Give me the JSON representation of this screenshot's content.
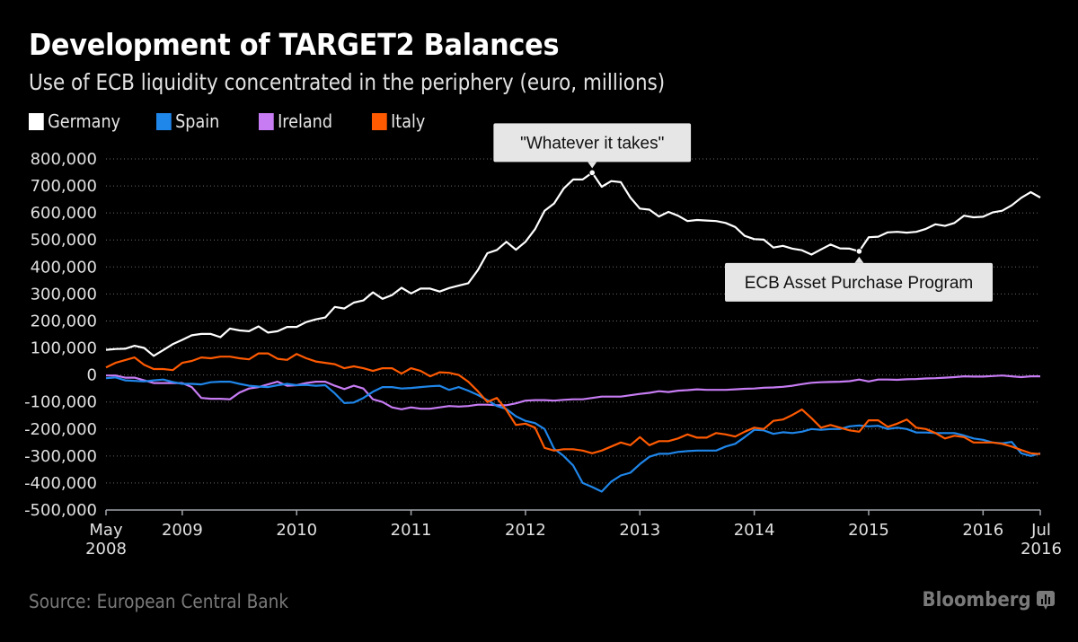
{
  "header": {
    "title": "Development of TARGET2 Balances",
    "subtitle": "Use of ECB liquidity concentrated in the periphery (euro, millions)"
  },
  "legend": [
    {
      "label": "Germany",
      "color": "#ffffff"
    },
    {
      "label": "Spain",
      "color": "#1f86ea"
    },
    {
      "label": "Ireland",
      "color": "#c77cf4"
    },
    {
      "label": "Italy",
      "color": "#ff5a00"
    }
  ],
  "footer": {
    "source": "Source: European Central Bank",
    "brand": "Bloomberg",
    "brand_icon": "bloomberg-chart-icon"
  },
  "chart_data": {
    "type": "line",
    "title": "Development of TARGET2 Balances",
    "subtitle": "Use of ECB liquidity concentrated in the periphery (euro, millions)",
    "xlabel": "",
    "ylabel": "",
    "ylim": [
      -500000,
      800000
    ],
    "yticks": [
      800000,
      700000,
      600000,
      500000,
      400000,
      300000,
      200000,
      100000,
      0,
      -100000,
      -200000,
      -300000,
      -400000,
      -500000
    ],
    "ytick_labels": [
      "800,000",
      "700,000",
      "600,000",
      "500,000",
      "400,000",
      "300,000",
      "200,000",
      "100,000",
      "0",
      "-100,000",
      "-200,000",
      "-300,000",
      "-400,000",
      "-500,000"
    ],
    "x_start": "2008-05",
    "x_end": "2016-07",
    "x_frequency": "monthly",
    "xticks": [
      {
        "month_index": 0,
        "label": "May",
        "label2": "2008"
      },
      {
        "month_index": 8,
        "label": "2009",
        "label2": ""
      },
      {
        "month_index": 20,
        "label": "2010",
        "label2": ""
      },
      {
        "month_index": 32,
        "label": "2011",
        "label2": ""
      },
      {
        "month_index": 44,
        "label": "2012",
        "label2": ""
      },
      {
        "month_index": 56,
        "label": "2013",
        "label2": ""
      },
      {
        "month_index": 68,
        "label": "2014",
        "label2": ""
      },
      {
        "month_index": 80,
        "label": "2015",
        "label2": ""
      },
      {
        "month_index": 92,
        "label": "2016",
        "label2": ""
      },
      {
        "month_index": 98,
        "label": "Jul",
        "label2": "2016"
      }
    ],
    "grid": true,
    "legend_position": "top-left",
    "series": [
      {
        "name": "Germany",
        "color": "#ffffff",
        "values": [
          93000,
          96000,
          97000,
          108000,
          100000,
          71000,
          92000,
          114000,
          130000,
          147000,
          152000,
          152000,
          140000,
          172000,
          165000,
          162000,
          180000,
          157000,
          162000,
          178000,
          178000,
          196000,
          206000,
          213000,
          252000,
          246000,
          268000,
          276000,
          306000,
          282000,
          296000,
          323000,
          302000,
          320000,
          320000,
          309000,
          322000,
          331000,
          340000,
          388000,
          451000,
          463000,
          493000,
          464000,
          493000,
          540000,
          608000,
          635000,
          690000,
          724000,
          724000,
          749000,
          697000,
          718000,
          714000,
          657000,
          616000,
          612000,
          587000,
          604000,
          590000,
          570000,
          574000,
          572000,
          570000,
          563000,
          548000,
          515000,
          503000,
          501000,
          472000,
          478000,
          468000,
          462000,
          446000,
          465000,
          483000,
          469000,
          468000,
          458000,
          510000,
          512000,
          528000,
          530000,
          527000,
          530000,
          541000,
          558000,
          552000,
          563000,
          590000,
          584000,
          586000,
          602000,
          608000,
          628000,
          656000,
          677000,
          657000
        ]
      },
      {
        "name": "Spain",
        "color": "#1f86ea",
        "values": [
          -12000,
          -9000,
          -20000,
          -22000,
          -24000,
          -20000,
          -17000,
          -26000,
          -33000,
          -33000,
          -35000,
          -27000,
          -25000,
          -25000,
          -33000,
          -40000,
          -43000,
          -45000,
          -38000,
          -33000,
          -38000,
          -37000,
          -40000,
          -38000,
          -68000,
          -104000,
          -102000,
          -85000,
          -62000,
          -45000,
          -45000,
          -50000,
          -48000,
          -45000,
          -42000,
          -40000,
          -55000,
          -45000,
          -58000,
          -74000,
          -93000,
          -115000,
          -126000,
          -153000,
          -170000,
          -178000,
          -200000,
          -273000,
          -300000,
          -335000,
          -400000,
          -415000,
          -432000,
          -395000,
          -372000,
          -362000,
          -330000,
          -303000,
          -292000,
          -292000,
          -285000,
          -282000,
          -280000,
          -280000,
          -280000,
          -265000,
          -255000,
          -230000,
          -203000,
          -205000,
          -218000,
          -212000,
          -215000,
          -210000,
          -200000,
          -203000,
          -200000,
          -200000,
          -190000,
          -187000,
          -190000,
          -188000,
          -200000,
          -195000,
          -200000,
          -213000,
          -213000,
          -215000,
          -215000,
          -215000,
          -224000,
          -235000,
          -240000,
          -250000,
          -253000,
          -248000,
          -290000,
          -300000,
          -290000
        ]
      },
      {
        "name": "Ireland",
        "color": "#c77cf4",
        "values": [
          -2000,
          -2000,
          -10000,
          -10000,
          -20000,
          -30000,
          -30000,
          -30000,
          -30000,
          -45000,
          -85000,
          -88000,
          -88000,
          -90000,
          -65000,
          -50000,
          -45000,
          -35000,
          -25000,
          -40000,
          -38000,
          -30000,
          -25000,
          -25000,
          -40000,
          -52000,
          -40000,
          -50000,
          -90000,
          -100000,
          -120000,
          -127000,
          -120000,
          -125000,
          -125000,
          -120000,
          -115000,
          -117000,
          -115000,
          -110000,
          -110000,
          -112000,
          -112000,
          -105000,
          -95000,
          -93000,
          -93000,
          -95000,
          -92000,
          -90000,
          -90000,
          -85000,
          -80000,
          -80000,
          -80000,
          -75000,
          -70000,
          -66000,
          -60000,
          -63000,
          -58000,
          -56000,
          -53000,
          -55000,
          -55000,
          -55000,
          -53000,
          -51000,
          -50000,
          -47000,
          -46000,
          -44000,
          -40000,
          -34000,
          -29000,
          -27000,
          -26000,
          -25000,
          -23000,
          -17000,
          -24000,
          -17000,
          -17000,
          -18000,
          -16000,
          -15000,
          -13000,
          -12000,
          -10000,
          -8000,
          -5000,
          -6000,
          -6000,
          -4000,
          -2000,
          -5000,
          -8000,
          -5000,
          -5000
        ]
      },
      {
        "name": "Italy",
        "color": "#ff5a00",
        "values": [
          28000,
          45000,
          55000,
          65000,
          38000,
          22000,
          22000,
          18000,
          45000,
          52000,
          65000,
          62000,
          68000,
          68000,
          62000,
          58000,
          80000,
          80000,
          60000,
          56000,
          78000,
          62000,
          50000,
          45000,
          40000,
          25000,
          32000,
          25000,
          15000,
          25000,
          25000,
          5000,
          25000,
          15000,
          -5000,
          10000,
          8000,
          0,
          -25000,
          -60000,
          -100000,
          -85000,
          -130000,
          -185000,
          -180000,
          -195000,
          -270000,
          -280000,
          -275000,
          -275000,
          -280000,
          -290000,
          -280000,
          -265000,
          -250000,
          -260000,
          -230000,
          -260000,
          -245000,
          -245000,
          -235000,
          -220000,
          -232000,
          -232000,
          -215000,
          -220000,
          -228000,
          -210000,
          -195000,
          -200000,
          -170000,
          -165000,
          -148000,
          -128000,
          -160000,
          -195000,
          -185000,
          -195000,
          -205000,
          -210000,
          -168000,
          -168000,
          -192000,
          -180000,
          -165000,
          -195000,
          -200000,
          -215000,
          -235000,
          -225000,
          -230000,
          -250000,
          -250000,
          -250000,
          -255000,
          -265000,
          -278000,
          -290000,
          -293000
        ]
      }
    ],
    "annotations": [
      {
        "text": "\"Whatever it takes\"",
        "series": "Germany",
        "month_index": 51,
        "value": 749000,
        "position": "above"
      },
      {
        "text": "ECB Asset Purchase Program",
        "series": "Germany",
        "month_index": 79,
        "value": 458000,
        "position": "below"
      }
    ]
  }
}
